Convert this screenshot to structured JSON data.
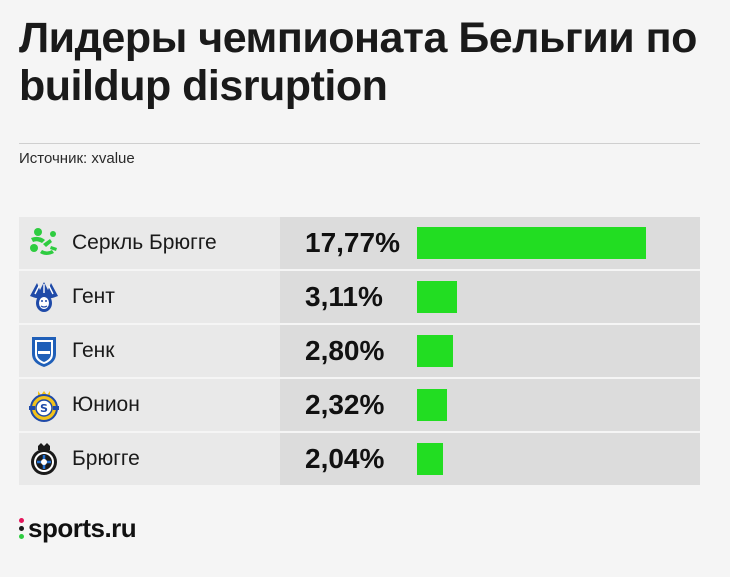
{
  "title": "Лидеры чемпионата Бельгии по buildup disruption",
  "source": "Источник: xvalue",
  "brand": "sports.ru",
  "colors": {
    "bar": "#22dd22",
    "panel_left": "#e9e9e9",
    "panel_right": "#dcdcdc"
  },
  "chart_data": {
    "type": "bar",
    "categories": [
      "Серкль Брюгге",
      "Гент",
      "Генк",
      "Юнион",
      "Брюгге"
    ],
    "series": [
      {
        "values": [
          17.77,
          3.11,
          2.8,
          2.32,
          2.04
        ],
        "labels": [
          "17,77%",
          "3,11%",
          "2,80%",
          "2,32%",
          "2,04%"
        ]
      }
    ],
    "logos": [
      "cercle-brugge-logo",
      "gent-logo",
      "genk-logo",
      "union-logo",
      "club-brugge-logo"
    ],
    "orientation": "horizontal",
    "grid": false,
    "legend": "none"
  }
}
